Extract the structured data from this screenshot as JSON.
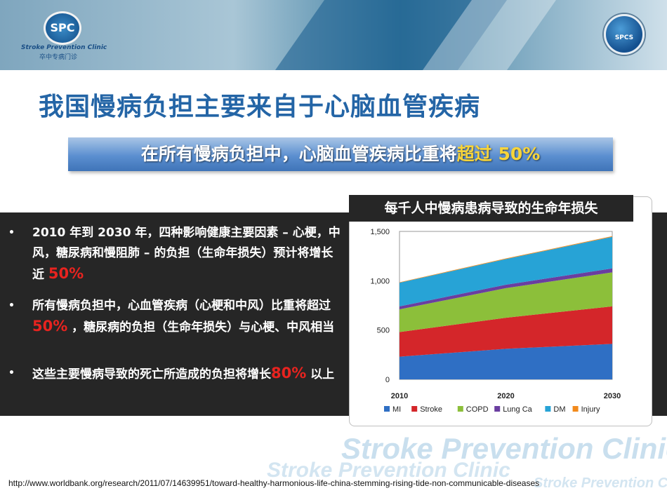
{
  "header": {
    "logo_left_mark": "SPC",
    "logo_left_en": "Stroke Prevention Clinic",
    "logo_left_cn": "卒中专病门诊",
    "logo_right_mark": "SPCS"
  },
  "title": "我国慢病负担主要来自于心脑血管疾病",
  "banner": {
    "text_main": "在所有慢病负担中，心脑血管疾病比重将",
    "text_highlight": "超过 50%"
  },
  "bullets": [
    {
      "text": "2010 年到 2030 年，四种影响健康主要因素 – 心梗，中风，糖尿病和慢阻肺 – 的负担（生命年损失）预计将增长近 ",
      "highlight": "50%",
      "after": ""
    },
    {
      "text": "所有慢病负担中，心血管疾病（心梗和中风）比重将超过 ",
      "highlight": "50%",
      "after": " ，糖尿病的负担（生命年损失）与心梗、中风相当"
    },
    {
      "text": "这些主要慢病导致的死亡所造成的负担将增长",
      "highlight": "80%",
      "after": " 以上"
    }
  ],
  "chart_data": {
    "type": "area",
    "title": "每千人中慢病患病导致的生命年损失",
    "x": [
      2010,
      2020,
      2030
    ],
    "x_ticks": [
      "2010",
      "2020",
      "2030"
    ],
    "y_ticks": [
      "0",
      "500",
      "1,000",
      "1,500"
    ],
    "ylim": [
      0,
      1500
    ],
    "stacked": true,
    "series": [
      {
        "name": "MI",
        "color": "#2f6fc4",
        "values": [
          230,
          310,
          360
        ]
      },
      {
        "name": "Stroke",
        "color": "#d4262a",
        "values": [
          250,
          315,
          380
        ]
      },
      {
        "name": "COPD",
        "color": "#8cbf3a",
        "values": [
          230,
          300,
          345
        ]
      },
      {
        "name": "Lung Ca",
        "color": "#6a3ea0",
        "values": [
          30,
          35,
          40
        ]
      },
      {
        "name": "DM",
        "color": "#27a3d6",
        "values": [
          240,
          260,
          320
        ]
      },
      {
        "name": "Injury",
        "color": "#f28a1c",
        "values": [
          5,
          6,
          7
        ]
      }
    ],
    "legend_position": "bottom"
  },
  "watermark": {
    "line1": "Stroke Prevention Clinic",
    "line2": "Stroke Prevention Clinic",
    "line3": "Stroke Prevention Clinic"
  },
  "footer": {
    "source_url": "http://www.worldbank.org/research/2011/07/14639951/toward-healthy-harmonious-life-china-stemming-rising-tide-non-communicable-diseases"
  }
}
